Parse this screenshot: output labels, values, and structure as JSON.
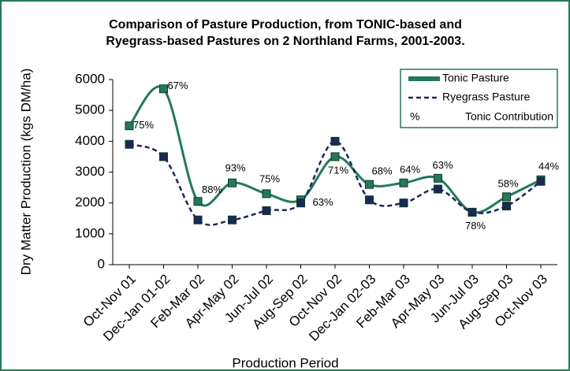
{
  "chart_data": {
    "type": "line",
    "title": [
      "Comparison of Pasture Production, from TONIC-based and",
      "Ryegrass-based Pastures on 2 Northland Farms, 2001-2003."
    ],
    "x_label": "Production Period",
    "y_label": "Dry Matter Production (kgs DM/ha)",
    "categories": [
      "Oct-Nov 01",
      "Dec-Jan 01-02",
      "Feb-Mar 02",
      "Apr-May 02",
      "Jun-Jul 02",
      "Aug-Sep 02",
      "Oct-Nov 02",
      "Dec-Jan 02-03",
      "Feb-Mar 03",
      "Apr-May 03",
      "Jun-Jul 03",
      "Aug-Sep 03",
      "Oct-Nov 03"
    ],
    "series": [
      {
        "name": "Tonic Pasture",
        "color": "#23795a",
        "dashed": false,
        "values": [
          4500,
          5700,
          2050,
          2650,
          2300,
          2100,
          3500,
          2600,
          2650,
          2800,
          1700,
          2200,
          2750
        ]
      },
      {
        "name": "Ryegrass Pasture",
        "color": "#1b2858",
        "dashed": true,
        "values": [
          3900,
          3500,
          1450,
          1450,
          1750,
          2000,
          4000,
          2100,
          2000,
          2450,
          1700,
          1900,
          2700
        ]
      }
    ],
    "contribution": {
      "name": "Tonic Contribution",
      "symbol": "%",
      "values": [
        75,
        67,
        88,
        93,
        75,
        63,
        71,
        68,
        64,
        63,
        78,
        58,
        44
      ],
      "value_labels": [
        "75%",
        "67%",
        "88%",
        "93%",
        "75%",
        "63%",
        "71%",
        "68%",
        "64%",
        "63%",
        "78%",
        "58%",
        "44%"
      ]
    },
    "ylim": [
      0,
      6000
    ],
    "yticks": [
      0,
      1000,
      2000,
      3000,
      4000,
      5000,
      6000
    ],
    "legend": "upper right"
  }
}
